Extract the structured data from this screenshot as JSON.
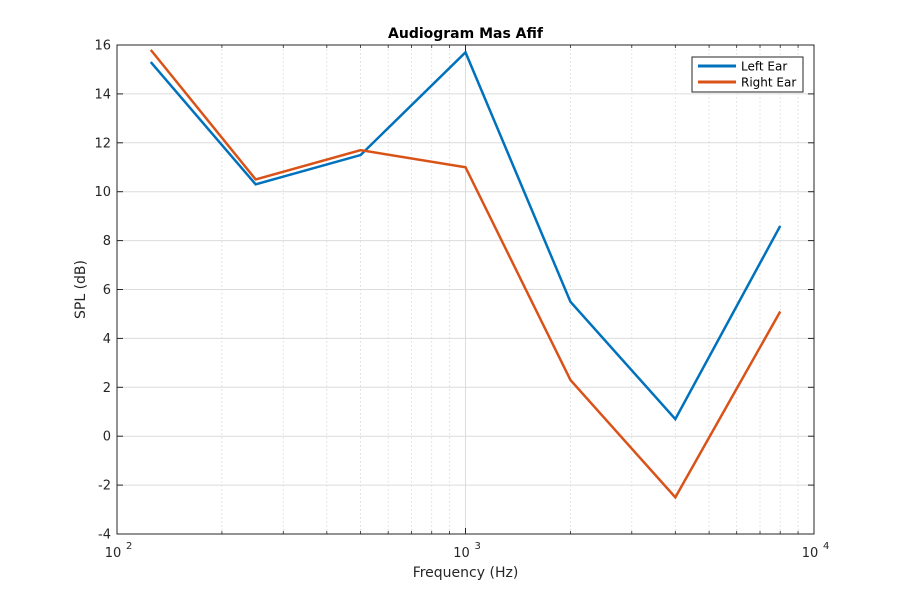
{
  "chart_data": {
    "type": "line",
    "title": "Audiogram Mas Afif",
    "xlabel": "Frequency (Hz)",
    "ylabel": "SPL (dB)",
    "xscale": "log",
    "xlim": [
      100,
      10000
    ],
    "ylim": [
      -4,
      16
    ],
    "yticks": [
      "-4",
      "-2",
      "0",
      "2",
      "4",
      "6",
      "8",
      "10",
      "12",
      "14",
      "16"
    ],
    "xticks": [
      {
        "base": "10",
        "exp": "2"
      },
      {
        "base": "10",
        "exp": "3"
      },
      {
        "base": "10",
        "exp": "4"
      }
    ],
    "grid": true,
    "minor_grid": true,
    "legend_position": "top-right",
    "x": [
      125,
      250,
      500,
      1000,
      2000,
      4000,
      8000
    ],
    "series": [
      {
        "name": "Left Ear",
        "color": "#0072BD",
        "values": [
          15.3,
          10.3,
          11.5,
          15.7,
          5.5,
          0.7,
          8.6
        ]
      },
      {
        "name": "Right Ear",
        "color": "#D95319",
        "values": [
          15.8,
          10.5,
          11.7,
          11.0,
          2.3,
          -2.5,
          5.1
        ]
      }
    ]
  }
}
